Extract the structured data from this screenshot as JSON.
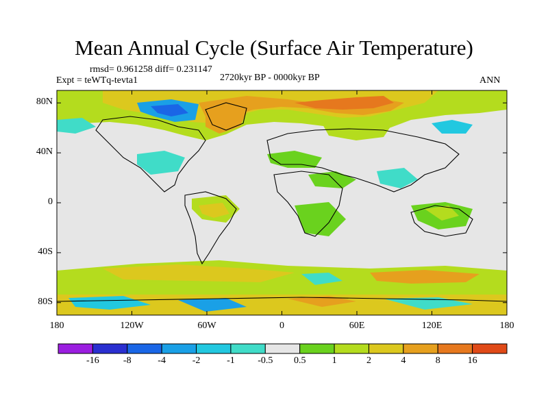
{
  "title": "Mean Annual Cycle (Surface Air Temperature)",
  "stats": "rmsd= 0.961258 diff= 0.231147",
  "experiment": "Expt = teWTq-tevta1",
  "period": "2720kyr BP - 0000kyr BP",
  "season": "ANN",
  "lat_ticks": [
    {
      "label": "80N",
      "value": 80
    },
    {
      "label": "40N",
      "value": 40
    },
    {
      "label": "0",
      "value": 0
    },
    {
      "label": "40S",
      "value": -40
    },
    {
      "label": "80S",
      "value": -80
    }
  ],
  "lon_ticks": [
    {
      "label": "180",
      "value": -180
    },
    {
      "label": "120W",
      "value": -120
    },
    {
      "label": "60W",
      "value": -60
    },
    {
      "label": "0",
      "value": 0
    },
    {
      "label": "60E",
      "value": 60
    },
    {
      "label": "120E",
      "value": 120
    },
    {
      "label": "180",
      "value": 180
    }
  ],
  "colorbar": {
    "colors": [
      "#9b1ee0",
      "#2a2fd0",
      "#1a66e6",
      "#1aa0e6",
      "#22c8e0",
      "#40dcc8",
      "#e6e6e6",
      "#6ad21e",
      "#b4dc1e",
      "#dcc81e",
      "#e6a01e",
      "#e6781e",
      "#e04a18"
    ],
    "labels": [
      "-16",
      "-8",
      "-4",
      "-2",
      "-1",
      "-0.5",
      "0.5",
      "1",
      "2",
      "4",
      "8",
      "16"
    ]
  }
}
